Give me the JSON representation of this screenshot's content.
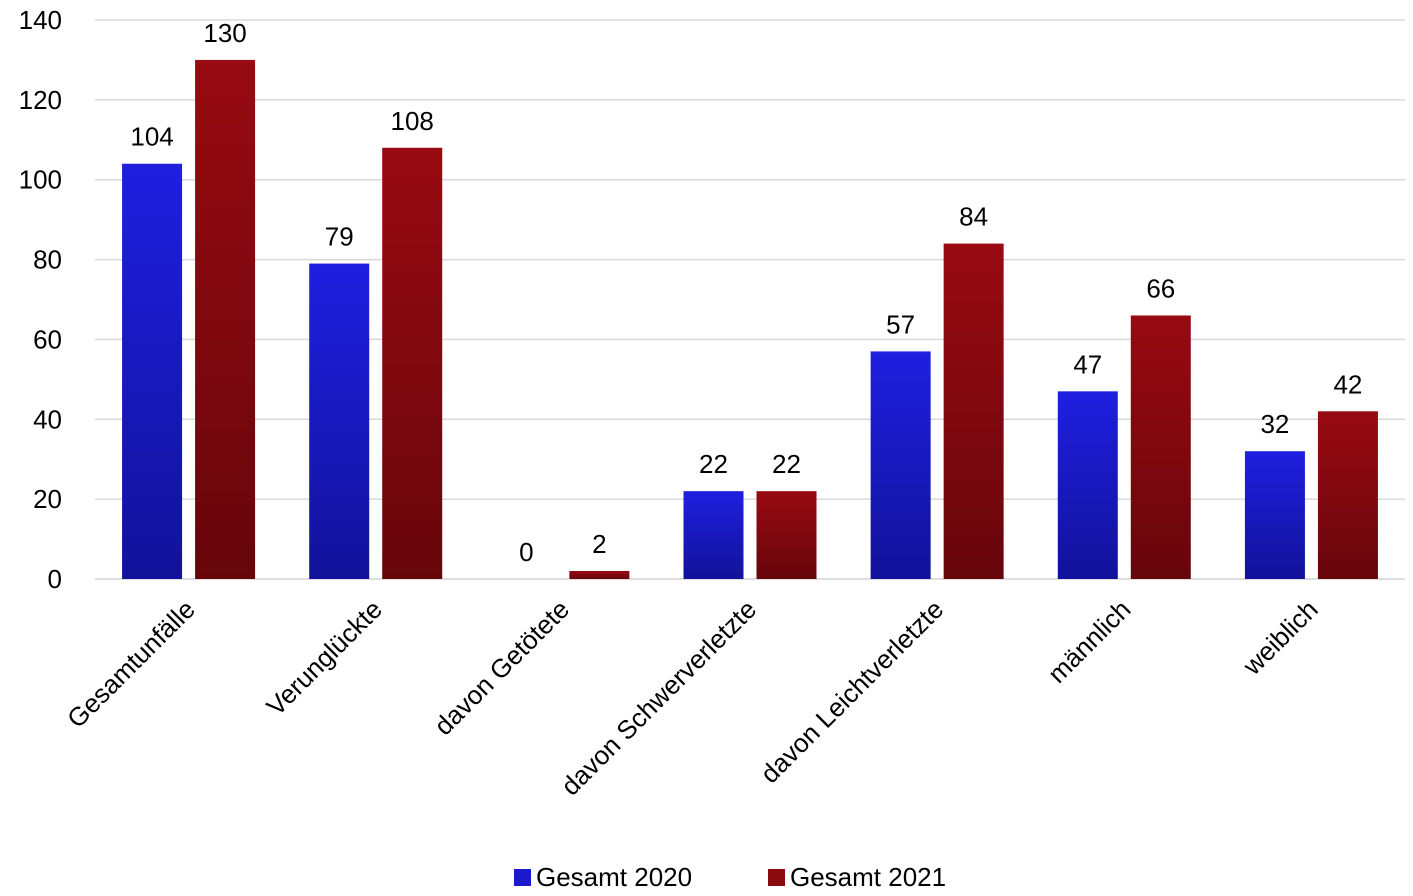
{
  "chart_data": {
    "type": "bar",
    "categories": [
      "Gesamtunfälle",
      "Verunglückte",
      "davon Getötete",
      "davon Schwerverletzte",
      "davon Leichtverletzte",
      "männlich",
      "weiblich"
    ],
    "series": [
      {
        "name": "Gesamt 2020",
        "values": [
          104,
          79,
          0,
          22,
          57,
          47,
          32
        ],
        "color": "#1a1acc"
      },
      {
        "name": "Gesamt 2021",
        "values": [
          130,
          108,
          2,
          22,
          84,
          66,
          42
        ],
        "color": "#8b0a10"
      }
    ],
    "ylim": [
      0,
      140
    ],
    "yticks": [
      0,
      20,
      40,
      60,
      80,
      100,
      120,
      140
    ],
    "grid": true,
    "legend_position": "bottom",
    "data_labels": true
  }
}
